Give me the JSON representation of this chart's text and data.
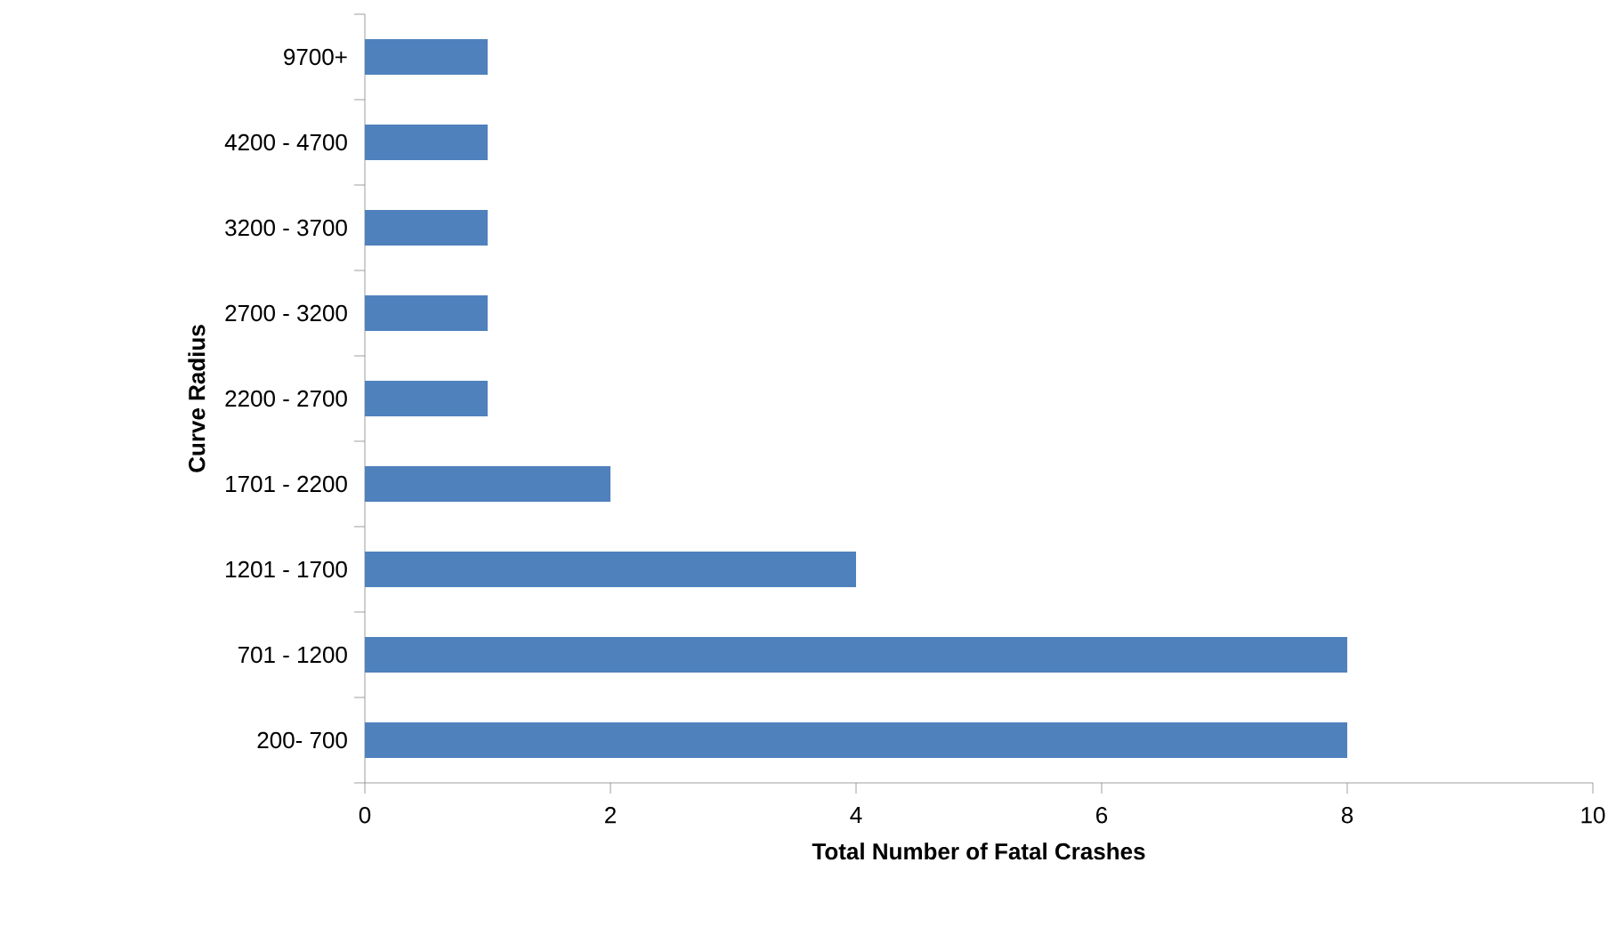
{
  "chart_data": {
    "type": "bar",
    "orientation": "horizontal",
    "xlabel": "Total Number of Fatal Crashes",
    "ylabel": "Curve Radius",
    "categories": [
      "9700+",
      "4200 - 4700",
      "3200 - 3700",
      "2700 - 3200",
      "2200 - 2700",
      "1701 - 2200",
      "1201 - 1700",
      "701 - 1200",
      "200- 700"
    ],
    "values": [
      1,
      1,
      1,
      1,
      1,
      2,
      4,
      8,
      8
    ],
    "color": "#4f81bd",
    "xlim": [
      0,
      10
    ],
    "xticks": [
      0,
      2,
      4,
      6,
      8,
      10
    ]
  }
}
